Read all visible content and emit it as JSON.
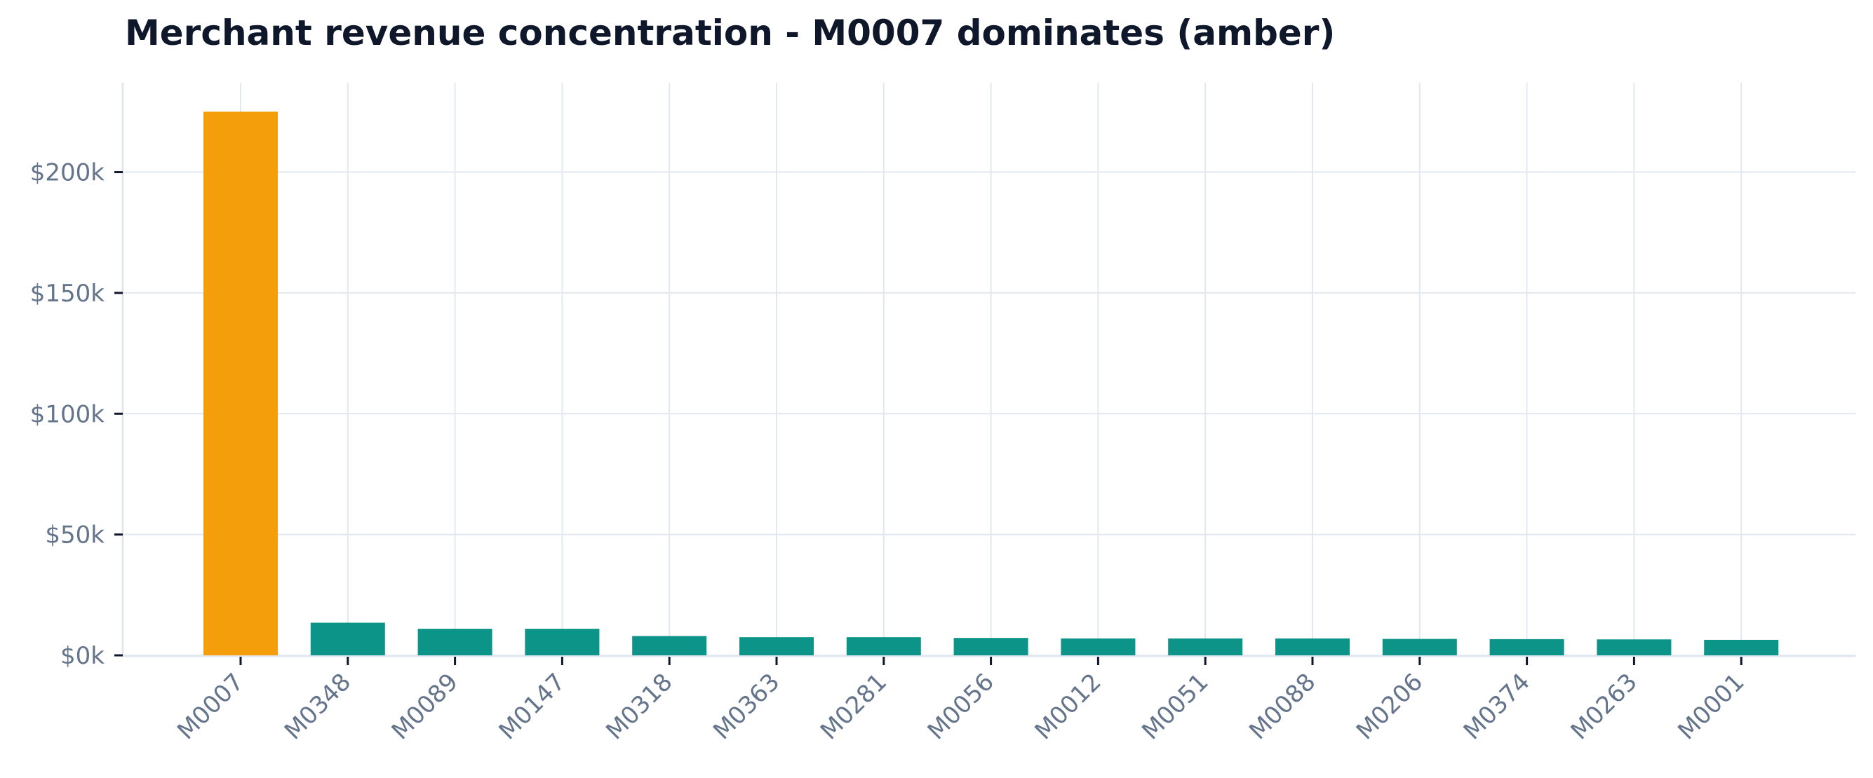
{
  "chart_data": {
    "type": "bar",
    "title": "Merchant revenue concentration - M0007 dominates (amber)",
    "xlabel": "",
    "ylabel": "",
    "categories": [
      "M0007",
      "M0348",
      "M0089",
      "M0147",
      "M0318",
      "M0363",
      "M0281",
      "M0056",
      "M0012",
      "M0051",
      "M0088",
      "M0206",
      "M0374",
      "M0263",
      "M0001"
    ],
    "values": [
      225000,
      13500,
      11000,
      11000,
      8000,
      7500,
      7500,
      7200,
      7000,
      7000,
      7000,
      6800,
      6700,
      6600,
      6400
    ],
    "ylim": [
      0,
      237000
    ],
    "yticks": [
      0,
      50000,
      100000,
      150000,
      200000
    ],
    "ytick_labels": [
      "$0k",
      "$50k",
      "$100k",
      "$150k",
      "$200k"
    ],
    "highlight_category": "M0007",
    "colors": {
      "highlight": "#f59e0b",
      "bar": "#0d9488",
      "grid": "#e2e8f0",
      "tick_text": "#64748b",
      "title": "#0f172a",
      "tick_mark": "#0f172a"
    },
    "grid": true,
    "legend": "none"
  }
}
